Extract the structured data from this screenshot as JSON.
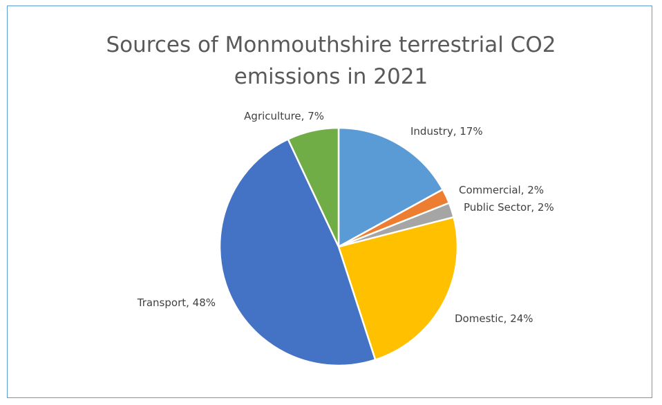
{
  "chart_data": {
    "type": "pie",
    "title_line1": "Sources of Monmouthshire terrestrial CO2",
    "title_line2": "emissions in 2021",
    "slices": [
      {
        "name": "Industry",
        "value": 17,
        "color": "#5b9bd5",
        "label": "Industry, 17%"
      },
      {
        "name": "Commercial",
        "value": 2,
        "color": "#ed7d31",
        "label": "Commercial, 2%"
      },
      {
        "name": "Public Sector",
        "value": 2,
        "color": "#a5a5a5",
        "label": "Public Sector, 2%"
      },
      {
        "name": "Domestic",
        "value": 24,
        "color": "#ffc000",
        "label": "Domestic, 24%"
      },
      {
        "name": "Transport",
        "value": 48,
        "color": "#4472c4",
        "label": "Transport, 48%"
      },
      {
        "name": "Agriculture",
        "value": 7,
        "color": "#70ad47",
        "label": "Agriculture, 7%"
      }
    ],
    "legend": "none"
  }
}
